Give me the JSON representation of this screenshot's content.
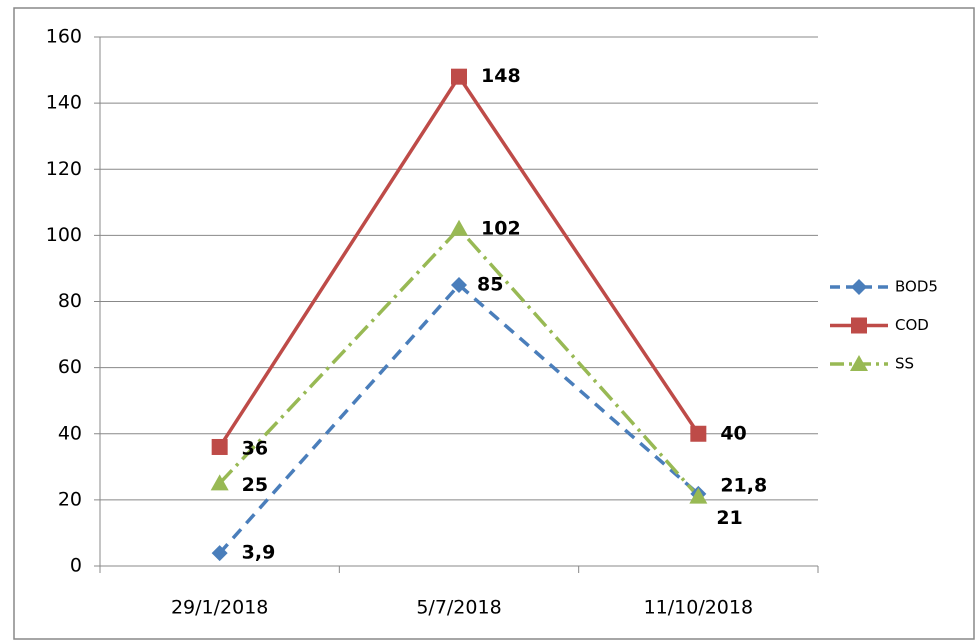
{
  "chart_data": {
    "type": "line",
    "categories": [
      "29/1/2018",
      "5/7/2018",
      "11/10/2018"
    ],
    "series": [
      {
        "name": "BOD5",
        "color": "#4a7ebb",
        "values": [
          3.9,
          85,
          21.8
        ],
        "value_labels": [
          "3,9",
          "85",
          "21,8"
        ]
      },
      {
        "name": "COD",
        "color": "#be4b48",
        "values": [
          36,
          148,
          40
        ]
      },
      {
        "name": "SS",
        "color": "#98b954",
        "values": [
          25,
          102,
          21
        ]
      }
    ],
    "ylim": [
      0,
      160
    ],
    "yticks": [
      0,
      20,
      40,
      60,
      80,
      100,
      120,
      140,
      160
    ],
    "grid": true,
    "legend": "right"
  }
}
